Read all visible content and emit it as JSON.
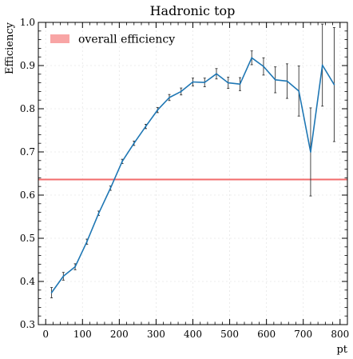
{
  "chart_data": {
    "type": "line",
    "title": "Hadronic top",
    "xlabel": "pt",
    "ylabel": "Efficiency",
    "xlim": [
      -20,
      820
    ],
    "ylim": [
      0.3,
      1.0
    ],
    "xticks": [
      0,
      100,
      200,
      300,
      400,
      500,
      600,
      700,
      800
    ],
    "yticks": [
      0.3,
      0.4,
      0.5,
      0.6,
      0.7,
      0.8,
      0.9,
      1.0
    ],
    "xtick_labels": [
      "0",
      "100",
      "200",
      "300",
      "400",
      "500",
      "600",
      "700",
      "800"
    ],
    "ytick_labels": [
      "0.3",
      "0.4",
      "0.5",
      "0.6",
      "0.7",
      "0.8",
      "0.9",
      "1.0"
    ],
    "grid": true,
    "legend": {
      "placement": "top-left",
      "entries": [
        {
          "label": "overall efficiency",
          "color": "#f8a5a5"
        }
      ]
    },
    "reference_line": {
      "value": 0.636,
      "color": "#f26b6b"
    },
    "series": [
      {
        "color": "#1f77b4",
        "x": [
          16,
          48,
          80,
          112,
          144,
          176,
          208,
          240,
          272,
          304,
          336,
          368,
          400,
          432,
          464,
          496,
          528,
          560,
          592,
          624,
          656,
          688,
          720,
          752,
          784
        ],
        "y": [
          0.374,
          0.412,
          0.434,
          0.492,
          0.558,
          0.616,
          0.678,
          0.72,
          0.759,
          0.797,
          0.826,
          0.84,
          0.862,
          0.861,
          0.881,
          0.86,
          0.857,
          0.918,
          0.898,
          0.867,
          0.864,
          0.841,
          0.7,
          0.901,
          0.856
        ],
        "yerr": [
          0.012,
          0.009,
          0.007,
          0.006,
          0.005,
          0.005,
          0.005,
          0.005,
          0.005,
          0.006,
          0.007,
          0.008,
          0.009,
          0.01,
          0.012,
          0.013,
          0.015,
          0.016,
          0.02,
          0.03,
          0.04,
          0.058,
          0.102,
          0.095,
          0.132
        ]
      }
    ]
  }
}
